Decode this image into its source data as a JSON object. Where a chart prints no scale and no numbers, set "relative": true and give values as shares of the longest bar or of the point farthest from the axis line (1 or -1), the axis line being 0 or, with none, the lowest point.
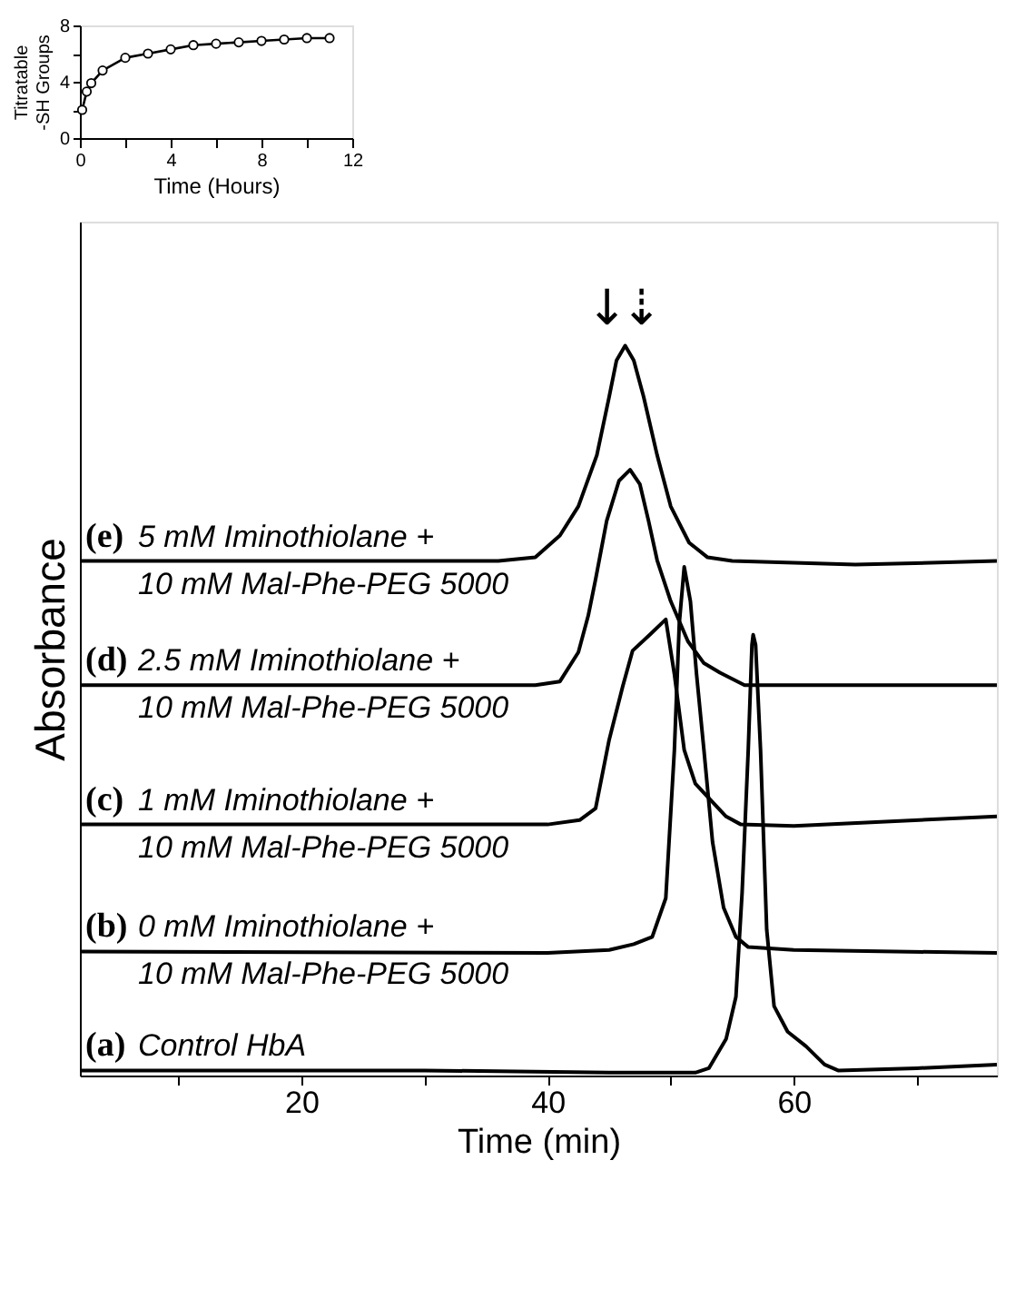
{
  "chart_data": [
    {
      "type": "line",
      "xlabel": "Time (Hours)",
      "ylabel": "Titratable\n-SH Groups",
      "xlim": [
        0,
        12
      ],
      "ylim": [
        0,
        8
      ],
      "xticks": [
        0,
        {
          "value": 2,
          "label": null
        },
        4,
        {
          "value": 6,
          "label": null
        },
        8,
        {
          "value": 10,
          "label": null
        },
        12
      ],
      "yticks": [
        0,
        {
          "value": 2,
          "label": null
        },
        4,
        {
          "value": 6,
          "label": null
        },
        8
      ],
      "marker": "circle",
      "line_style": "solid",
      "grid": false,
      "legend": false,
      "x": [
        0.1,
        0.3,
        0.5,
        1,
        2,
        3,
        4,
        5,
        6,
        7,
        8,
        9,
        10,
        11
      ],
      "series": [
        {
          "color": "#000000",
          "values": [
            2.0,
            3.3,
            3.9,
            4.8,
            5.7,
            6.0,
            6.3,
            6.6,
            6.7,
            6.8,
            6.9,
            7.0,
            7.1,
            7.1
          ]
        }
      ]
    },
    {
      "type": "line",
      "relative": true,
      "xlabel": "Time (min)",
      "ylabel": "Absorbance",
      "xlim": [
        2,
        76.5
      ],
      "xticks": [
        {
          "value": 10,
          "label": null
        },
        20,
        {
          "value": 30,
          "label": null
        },
        40,
        {
          "value": 50,
          "label": null
        },
        60,
        {
          "value": 70,
          "label": null
        }
      ],
      "tick_labels": "x",
      "grid": false,
      "legend": false,
      "marker": "none",
      "line_style": "solid",
      "annotations": [
        "↓",
        "⇣"
      ],
      "series": [
        {
          "name": "(e) 5 mM Iminothiolane +\n10 mM Mal-Phe-PEG 5000",
          "color": "#000000",
          "x": [
            2,
            36,
            39,
            41,
            42.5,
            44,
            45,
            45.6,
            46.3,
            47,
            47.8,
            48.9,
            50,
            51.5,
            53,
            55,
            65,
            76.5
          ],
          "values": [
            0.705,
            0.705,
            0.71,
            0.74,
            0.78,
            0.85,
            0.93,
            0.98,
            1.0,
            0.98,
            0.93,
            0.85,
            0.78,
            0.73,
            0.71,
            0.705,
            0.7,
            0.705
          ]
        },
        {
          "name": "(d) 2.5 mM Iminothiolane +\n10 mM Mal-Phe-PEG 5000",
          "color": "#000000",
          "x": [
            2,
            39,
            41,
            42.5,
            43.3,
            43.9,
            44.8,
            45.8,
            46.7,
            47.5,
            48.2,
            48.9,
            50,
            51.4,
            52.7,
            54,
            56,
            76.5
          ],
          "values": [
            0.535,
            0.535,
            0.54,
            0.58,
            0.63,
            0.68,
            0.76,
            0.815,
            0.83,
            0.81,
            0.76,
            0.706,
            0.65,
            0.595,
            0.565,
            0.552,
            0.535,
            0.535
          ]
        },
        {
          "name": "(c) 1 mM Iminothiolane +\n10 mM Mal-Phe-PEG 5000",
          "color": "#000000",
          "x": [
            2,
            40,
            42.6,
            43.9,
            45,
            46.1,
            46.9,
            48.3,
            49.6,
            50.3,
            51.1,
            52,
            53.1,
            54.5,
            55.7,
            60,
            76.5
          ],
          "values": [
            0.344,
            0.344,
            0.35,
            0.366,
            0.46,
            0.533,
            0.582,
            0.604,
            0.625,
            0.55,
            0.446,
            0.4,
            0.38,
            0.355,
            0.344,
            0.342,
            0.355
          ]
        },
        {
          "name": "(b) 0 mM Iminothiolane +\n10 mM Mal-Phe-PEG 5000",
          "color": "#000000",
          "x": [
            2,
            40,
            45,
            47,
            48.5,
            49.6,
            50.3,
            50.7,
            51.1,
            51.6,
            52.1,
            52.7,
            53.4,
            54.3,
            55.3,
            56.3,
            60,
            76.5
          ],
          "values": [
            0.17,
            0.168,
            0.172,
            0.18,
            0.19,
            0.243,
            0.446,
            0.62,
            0.697,
            0.65,
            0.55,
            0.446,
            0.32,
            0.23,
            0.19,
            0.176,
            0.172,
            0.168
          ]
        },
        {
          "name": "(a) Control HbA",
          "color": "#000000",
          "x": [
            2,
            30,
            45,
            52,
            53.1,
            54.5,
            55.3,
            55.8,
            56.3,
            56.6,
            56.7,
            56.9,
            57.3,
            57.8,
            58.4,
            59.5,
            61,
            62.5,
            63.6,
            70,
            76.5
          ],
          "values": [
            0.007,
            0.007,
            0.004,
            0.004,
            0.01,
            0.05,
            0.108,
            0.25,
            0.446,
            0.59,
            0.604,
            0.59,
            0.446,
            0.2,
            0.095,
            0.06,
            0.04,
            0.015,
            0.007,
            0.01,
            0.015
          ]
        }
      ]
    }
  ]
}
